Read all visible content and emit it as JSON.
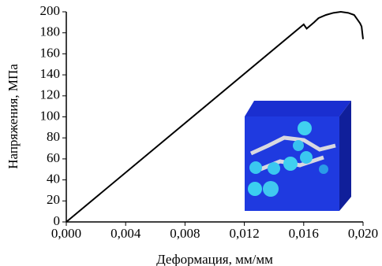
{
  "chart_data": {
    "type": "line",
    "xlabel": "Деформация, мм/мм",
    "ylabel": "Напряжения, МПа",
    "x": [
      0,
      0.016,
      0.0162,
      0.0167,
      0.017,
      0.0175,
      0.018,
      0.0185,
      0.019,
      0.0194,
      0.0196,
      0.0198,
      0.0199,
      0.02
    ],
    "series": [
      {
        "color": "#000000",
        "values": [
          0,
          188,
          184,
          190,
          194,
          197,
          199,
          200,
          199,
          197,
          193,
          189,
          186,
          174
        ]
      }
    ],
    "xlim": [
      0,
      0.02
    ],
    "ylim": [
      0,
      200
    ],
    "xticks": [
      {
        "value": 0,
        "label": "0,000"
      },
      {
        "value": 0.004,
        "label": "0,004"
      },
      {
        "value": 0.008,
        "label": "0,008"
      },
      {
        "value": 0.012,
        "label": "0,012"
      },
      {
        "value": 0.016,
        "label": "0,016"
      },
      {
        "value": 0.02,
        "label": "0,020"
      }
    ],
    "yticks": [
      0,
      20,
      40,
      60,
      80,
      100,
      120,
      140,
      160,
      180,
      200
    ]
  }
}
